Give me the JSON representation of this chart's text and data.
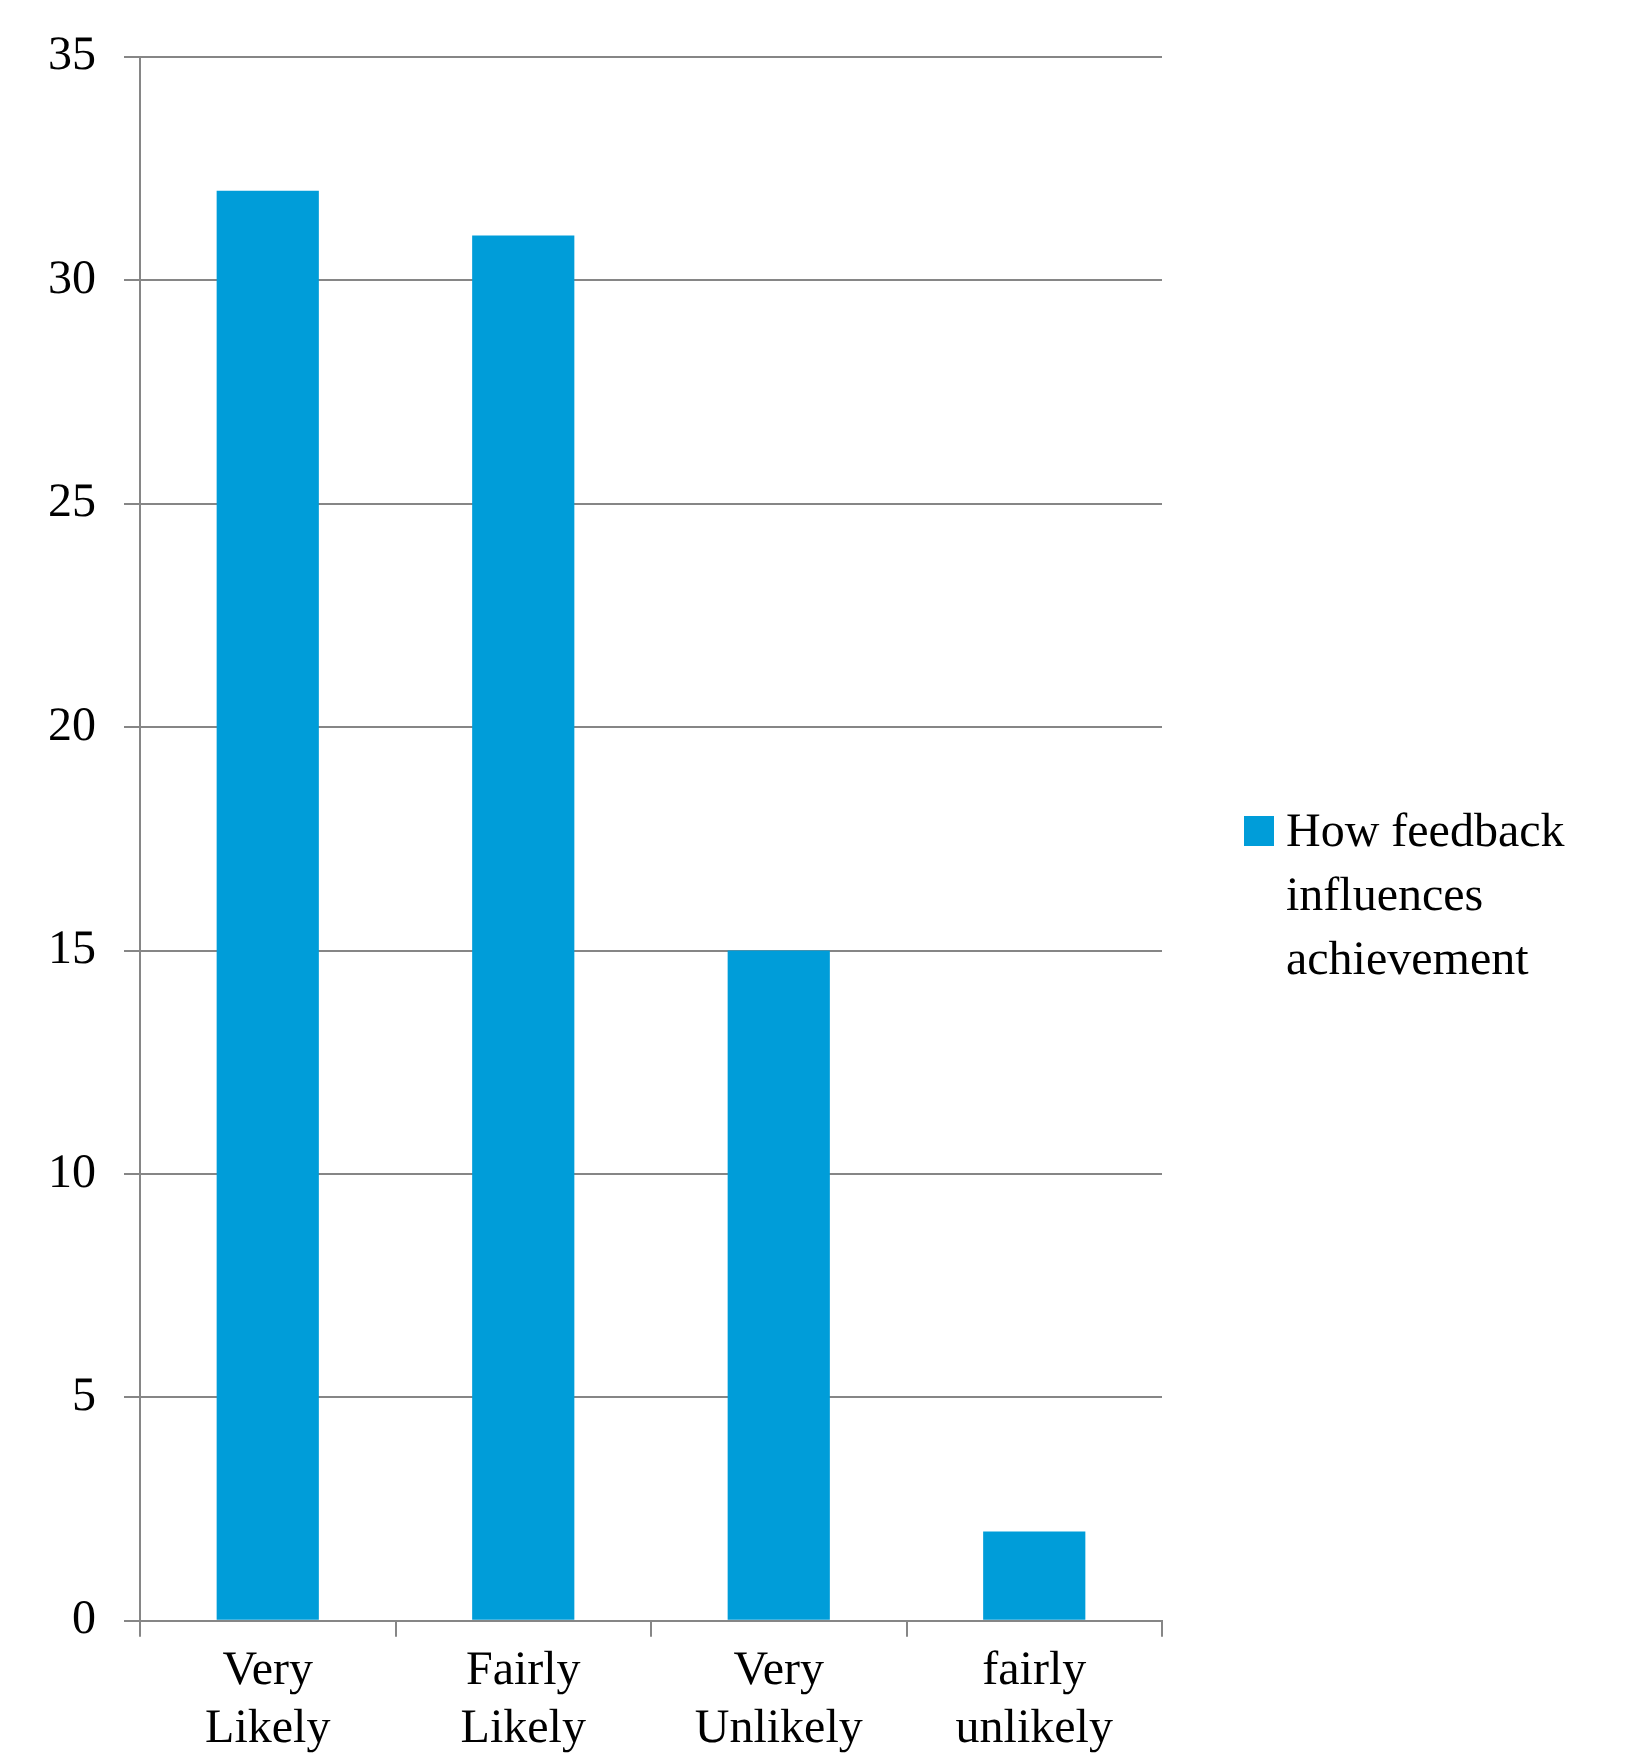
{
  "chart_data": {
    "type": "bar",
    "categories": [
      "Very Likely",
      "Fairly Likely",
      "Very Unlikely",
      "fairly unlikely"
    ],
    "series": [
      {
        "name": "How feedback influences achievement",
        "color": "#009dd9",
        "values": [
          32,
          31,
          15,
          2
        ]
      }
    ],
    "ylim": [
      0,
      35
    ],
    "yticks": [
      0,
      5,
      10,
      15,
      20,
      25,
      30,
      35
    ],
    "grid": "y",
    "legend": "right"
  }
}
